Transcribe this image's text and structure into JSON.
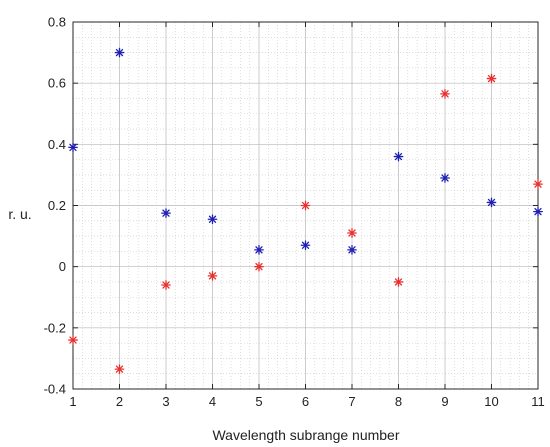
{
  "chart_data": {
    "type": "scatter",
    "title": "",
    "xlabel": "Wavelength subrange number",
    "ylabel": "r. u.",
    "xlim": [
      1,
      11
    ],
    "ylim": [
      -0.4,
      0.8
    ],
    "xticks": [
      "1",
      "2",
      "3",
      "4",
      "5",
      "6",
      "7",
      "8",
      "9",
      "10",
      "11"
    ],
    "yticks": [
      "-0.4",
      "-0.2",
      "0",
      "0.2",
      "0.4",
      "0.6",
      "0.8"
    ],
    "grid": true,
    "minor_grid": true,
    "marker": "*",
    "series": [
      {
        "color": "#1f1fb4",
        "x": [
          1,
          2,
          3,
          4,
          5,
          6,
          7,
          8,
          9,
          10,
          11
        ],
        "values": [
          0.39,
          0.7,
          0.175,
          0.155,
          0.055,
          0.07,
          0.055,
          0.36,
          0.29,
          0.21,
          0.18
        ]
      },
      {
        "color": "#e8302f",
        "x": [
          1,
          2,
          3,
          4,
          5,
          6,
          7,
          8,
          9,
          10,
          11
        ],
        "values": [
          -0.24,
          -0.335,
          -0.06,
          -0.03,
          0.0,
          0.2,
          0.11,
          -0.05,
          0.565,
          0.615,
          0.27
        ]
      }
    ]
  }
}
